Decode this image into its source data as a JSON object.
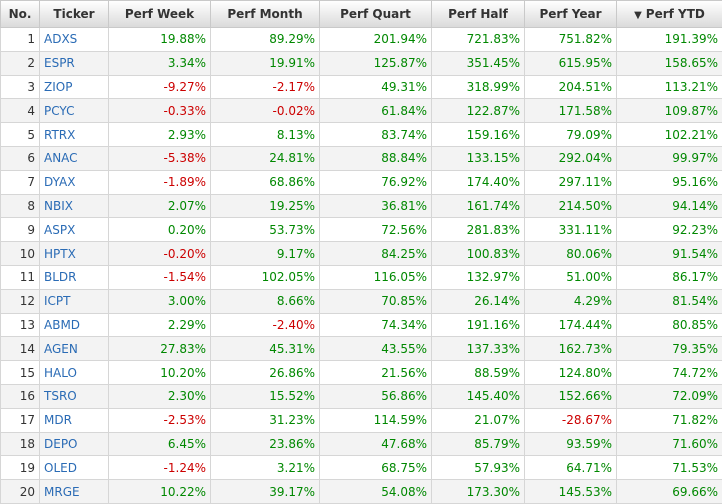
{
  "headers": [
    {
      "label": "No.",
      "name": "col-header-no",
      "align": "center"
    },
    {
      "label": "Ticker",
      "name": "col-header-ticker",
      "align": "center"
    },
    {
      "label": "Perf Week",
      "name": "col-header-perf-week",
      "align": "center"
    },
    {
      "label": "Perf Month",
      "name": "col-header-perf-month",
      "align": "center"
    },
    {
      "label": "Perf Quart",
      "name": "col-header-perf-quart",
      "align": "center"
    },
    {
      "label": "Perf Half",
      "name": "col-header-perf-half",
      "align": "center"
    },
    {
      "label": "Perf Year",
      "name": "col-header-perf-year",
      "align": "center"
    },
    {
      "label": "Perf YTD",
      "name": "col-header-perf-ytd",
      "align": "center",
      "sort_icon": "▼"
    }
  ],
  "colors": {
    "positive": "#008800",
    "negative": "#cc0000",
    "ticker": "#2a6bb5"
  },
  "rows": [
    {
      "no": "1",
      "ticker": "ADXS",
      "perf": [
        "19.88%",
        "89.29%",
        "201.94%",
        "721.83%",
        "751.82%",
        "191.39%"
      ]
    },
    {
      "no": "2",
      "ticker": "ESPR",
      "perf": [
        "3.34%",
        "19.91%",
        "125.87%",
        "351.45%",
        "615.95%",
        "158.65%"
      ]
    },
    {
      "no": "3",
      "ticker": "ZIOP",
      "perf": [
        "-9.27%",
        "-2.17%",
        "49.31%",
        "318.99%",
        "204.51%",
        "113.21%"
      ]
    },
    {
      "no": "4",
      "ticker": "PCYC",
      "perf": [
        "-0.33%",
        "-0.02%",
        "61.84%",
        "122.87%",
        "171.58%",
        "109.87%"
      ]
    },
    {
      "no": "5",
      "ticker": "RTRX",
      "perf": [
        "2.93%",
        "8.13%",
        "83.74%",
        "159.16%",
        "79.09%",
        "102.21%"
      ]
    },
    {
      "no": "6",
      "ticker": "ANAC",
      "perf": [
        "-5.38%",
        "24.81%",
        "88.84%",
        "133.15%",
        "292.04%",
        "99.97%"
      ]
    },
    {
      "no": "7",
      "ticker": "DYAX",
      "perf": [
        "-1.89%",
        "68.86%",
        "76.92%",
        "174.40%",
        "297.11%",
        "95.16%"
      ]
    },
    {
      "no": "8",
      "ticker": "NBIX",
      "perf": [
        "2.07%",
        "19.25%",
        "36.81%",
        "161.74%",
        "214.50%",
        "94.14%"
      ]
    },
    {
      "no": "9",
      "ticker": "ASPX",
      "perf": [
        "0.20%",
        "53.73%",
        "72.56%",
        "281.83%",
        "331.11%",
        "92.23%"
      ]
    },
    {
      "no": "10",
      "ticker": "HPTX",
      "perf": [
        "-0.20%",
        "9.17%",
        "84.25%",
        "100.83%",
        "80.06%",
        "91.54%"
      ]
    },
    {
      "no": "11",
      "ticker": "BLDR",
      "perf": [
        "-1.54%",
        "102.05%",
        "116.05%",
        "132.97%",
        "51.00%",
        "86.17%"
      ]
    },
    {
      "no": "12",
      "ticker": "ICPT",
      "perf": [
        "3.00%",
        "8.66%",
        "70.85%",
        "26.14%",
        "4.29%",
        "81.54%"
      ]
    },
    {
      "no": "13",
      "ticker": "ABMD",
      "perf": [
        "2.29%",
        "-2.40%",
        "74.34%",
        "191.16%",
        "174.44%",
        "80.85%"
      ]
    },
    {
      "no": "14",
      "ticker": "AGEN",
      "perf": [
        "27.83%",
        "45.31%",
        "43.55%",
        "137.33%",
        "162.73%",
        "79.35%"
      ]
    },
    {
      "no": "15",
      "ticker": "HALO",
      "perf": [
        "10.20%",
        "26.86%",
        "21.56%",
        "88.59%",
        "124.80%",
        "74.72%"
      ]
    },
    {
      "no": "16",
      "ticker": "TSRO",
      "perf": [
        "2.30%",
        "15.52%",
        "56.86%",
        "145.40%",
        "152.66%",
        "72.09%"
      ]
    },
    {
      "no": "17",
      "ticker": "MDR",
      "perf": [
        "-2.53%",
        "31.23%",
        "114.59%",
        "21.07%",
        "-28.67%",
        "71.82%"
      ]
    },
    {
      "no": "18",
      "ticker": "DEPO",
      "perf": [
        "6.45%",
        "23.86%",
        "47.68%",
        "85.79%",
        "93.59%",
        "71.60%"
      ]
    },
    {
      "no": "19",
      "ticker": "OLED",
      "perf": [
        "-1.24%",
        "3.21%",
        "68.75%",
        "57.93%",
        "64.71%",
        "71.53%"
      ]
    },
    {
      "no": "20",
      "ticker": "MRGE",
      "perf": [
        "10.22%",
        "39.17%",
        "54.08%",
        "173.30%",
        "145.53%",
        "69.66%"
      ]
    }
  ]
}
